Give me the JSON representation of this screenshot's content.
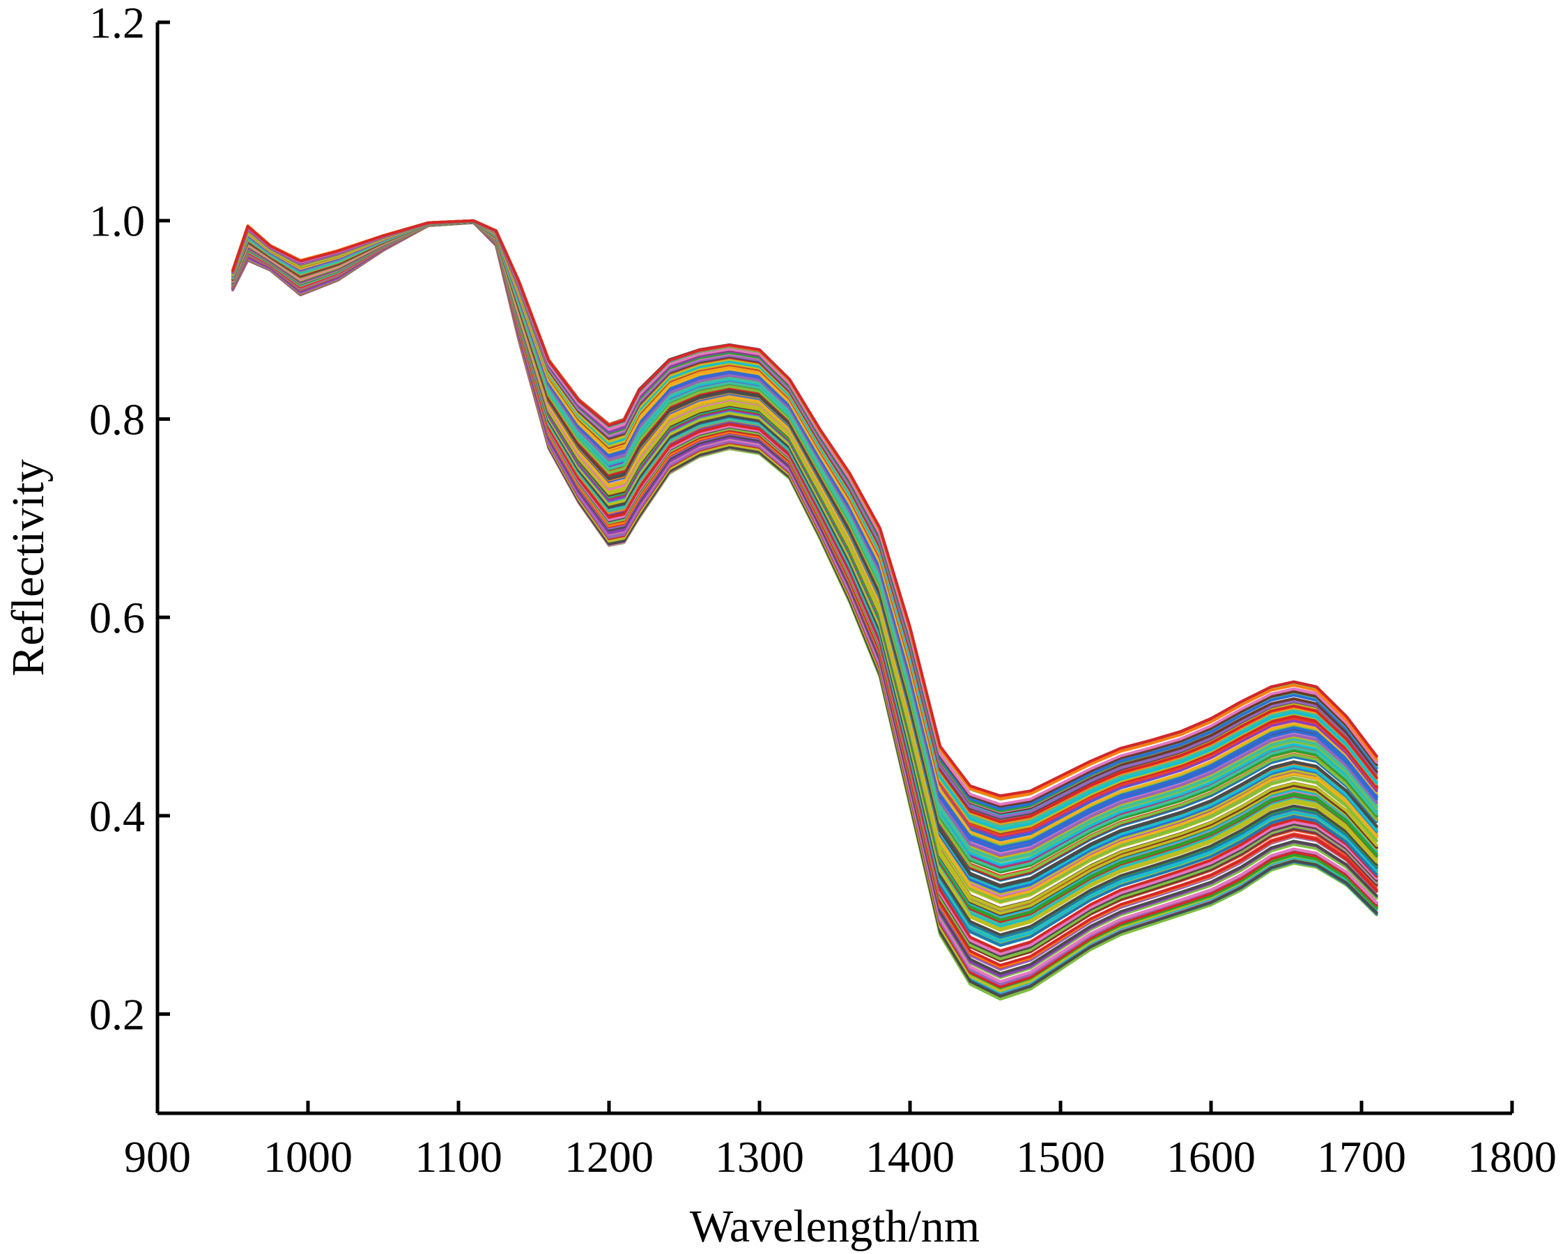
{
  "chart_data": {
    "type": "line",
    "title": "",
    "xlabel": "Wavelength/nm",
    "ylabel": "Reflectivity",
    "xlim": [
      900,
      1800
    ],
    "ylim": [
      0.1,
      1.2
    ],
    "x_ticks": [
      900,
      1000,
      1100,
      1200,
      1300,
      1400,
      1500,
      1600,
      1700,
      1800
    ],
    "x_tick_labels": [
      "900",
      "1000",
      "1100",
      "1200",
      "1300",
      "1400",
      "1500",
      "1600",
      "1700",
      "1800"
    ],
    "y_ticks": [
      0.2,
      0.4,
      0.6,
      0.8,
      1.0,
      1.2
    ],
    "y_tick_labels": [
      "0.2",
      "0.4",
      "0.6",
      "0.8",
      "1.0",
      "1.2"
    ],
    "grid": false,
    "legend": "none",
    "series_colors": [
      "#e8412b",
      "#2b6fd6",
      "#2ca02c",
      "#f2b01e",
      "#8c3fbf",
      "#17becf",
      "#6b3a2a",
      "#ff7f0e",
      "#d62728",
      "#1f77b4",
      "#7fbf3f",
      "#e377c2",
      "#4b4b4b",
      "#9467bd",
      "#bcbd22",
      "#3fbf9f"
    ],
    "x": [
      950,
      960,
      975,
      995,
      1020,
      1050,
      1080,
      1110,
      1125,
      1140,
      1160,
      1180,
      1200,
      1210,
      1220,
      1240,
      1260,
      1280,
      1300,
      1320,
      1340,
      1360,
      1380,
      1400,
      1420,
      1440,
      1460,
      1480,
      1500,
      1520,
      1540,
      1560,
      1580,
      1600,
      1620,
      1640,
      1655,
      1670,
      1690,
      1710
    ],
    "envelope": {
      "upper": [
        0.95,
        0.995,
        0.975,
        0.96,
        0.97,
        0.985,
        0.998,
        1.0,
        0.99,
        0.94,
        0.86,
        0.82,
        0.795,
        0.8,
        0.83,
        0.86,
        0.87,
        0.875,
        0.87,
        0.84,
        0.79,
        0.745,
        0.69,
        0.59,
        0.47,
        0.43,
        0.42,
        0.425,
        0.44,
        0.455,
        0.468,
        0.476,
        0.485,
        0.498,
        0.515,
        0.53,
        0.535,
        0.53,
        0.5,
        0.46
      ],
      "lower": [
        0.93,
        0.96,
        0.95,
        0.925,
        0.94,
        0.97,
        0.995,
        0.998,
        0.975,
        0.88,
        0.77,
        0.715,
        0.672,
        0.675,
        0.7,
        0.745,
        0.762,
        0.77,
        0.765,
        0.74,
        0.68,
        0.615,
        0.54,
        0.41,
        0.28,
        0.23,
        0.215,
        0.225,
        0.245,
        0.265,
        0.28,
        0.29,
        0.3,
        0.31,
        0.325,
        0.345,
        0.352,
        0.348,
        0.33,
        0.3
      ]
    },
    "series_count": 160,
    "annotations": []
  }
}
